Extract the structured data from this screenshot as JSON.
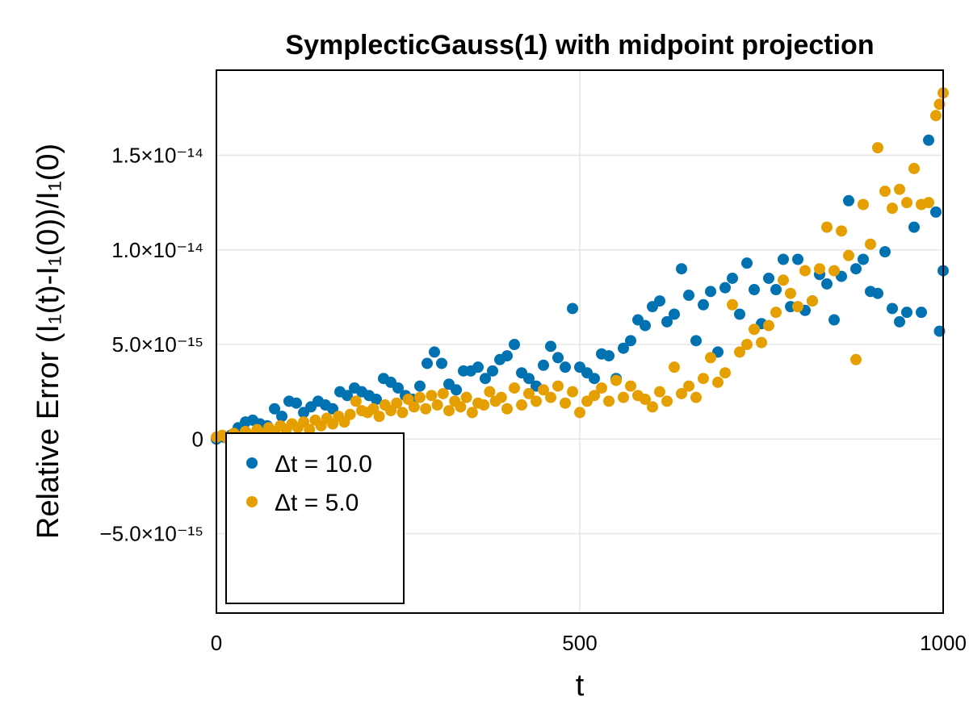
{
  "chart_data": {
    "type": "scatter",
    "title": "SymplecticGauss(1) with midpoint projection",
    "xlabel": "t",
    "ylabel": "Relative Error (I₁(t)-I₁(0))/I₁(0)",
    "xlim": [
      0,
      1000
    ],
    "ylim": [
      -9.2e-15,
      1.95e-14
    ],
    "x_ticks": [
      {
        "value": 0,
        "label": "0"
      },
      {
        "value": 500,
        "label": "500"
      },
      {
        "value": 1000,
        "label": "1000"
      }
    ],
    "y_ticks": [
      {
        "value": -5e-15,
        "label": "−5.0×10⁻¹⁵"
      },
      {
        "value": 0,
        "label": "0"
      },
      {
        "value": 5e-15,
        "label": "5.0×10⁻¹⁵"
      },
      {
        "value": 1e-14,
        "label": "1.0×10⁻¹⁴"
      },
      {
        "value": 1.5e-14,
        "label": "1.5×10⁻¹⁴"
      }
    ],
    "grid": true,
    "legend_position": "bottom-left",
    "series": [
      {
        "name": "Δt = 10.0",
        "color": "#0072b2",
        "points": [
          [
            0,
            0.0
          ],
          [
            10,
            1e-16
          ],
          [
            20,
            2e-16
          ],
          [
            30,
            6e-16
          ],
          [
            40,
            9e-16
          ],
          [
            50,
            1e-15
          ],
          [
            60,
            8e-16
          ],
          [
            70,
            7e-16
          ],
          [
            80,
            1.6e-15
          ],
          [
            90,
            1.2e-15
          ],
          [
            100,
            2e-15
          ],
          [
            110,
            1.9e-15
          ],
          [
            120,
            1.4e-15
          ],
          [
            130,
            1.7e-15
          ],
          [
            140,
            2e-15
          ],
          [
            150,
            1.8e-15
          ],
          [
            160,
            1.6e-15
          ],
          [
            170,
            2.5e-15
          ],
          [
            180,
            2.3e-15
          ],
          [
            190,
            2.7e-15
          ],
          [
            200,
            2.5e-15
          ],
          [
            210,
            2.3e-15
          ],
          [
            220,
            2.1e-15
          ],
          [
            230,
            3.2e-15
          ],
          [
            240,
            3e-15
          ],
          [
            250,
            2.7e-15
          ],
          [
            260,
            2.3e-15
          ],
          [
            270,
            2.1e-15
          ],
          [
            280,
            2.8e-15
          ],
          [
            290,
            4e-15
          ],
          [
            300,
            4.6e-15
          ],
          [
            310,
            4e-15
          ],
          [
            320,
            2.9e-15
          ],
          [
            330,
            2.6e-15
          ],
          [
            340,
            3.6e-15
          ],
          [
            350,
            3.6e-15
          ],
          [
            360,
            3.8e-15
          ],
          [
            370,
            3.2e-15
          ],
          [
            380,
            3.6e-15
          ],
          [
            390,
            4.2e-15
          ],
          [
            400,
            4.4e-15
          ],
          [
            410,
            5e-15
          ],
          [
            420,
            3.5e-15
          ],
          [
            430,
            3.2e-15
          ],
          [
            440,
            2.8e-15
          ],
          [
            450,
            3.9e-15
          ],
          [
            460,
            4.9e-15
          ],
          [
            470,
            4.3e-15
          ],
          [
            480,
            3.8e-15
          ],
          [
            490,
            6.9e-15
          ],
          [
            500,
            3.8e-15
          ],
          [
            510,
            3.5e-15
          ],
          [
            520,
            3.2e-15
          ],
          [
            530,
            4.5e-15
          ],
          [
            540,
            4.4e-15
          ],
          [
            550,
            3.2e-15
          ],
          [
            560,
            4.8e-15
          ],
          [
            570,
            5.2e-15
          ],
          [
            580,
            6.3e-15
          ],
          [
            590,
            6e-15
          ],
          [
            600,
            7e-15
          ],
          [
            610,
            7.3e-15
          ],
          [
            620,
            6.2e-15
          ],
          [
            630,
            6.6e-15
          ],
          [
            640,
            9e-15
          ],
          [
            650,
            7.6e-15
          ],
          [
            660,
            5.2e-15
          ],
          [
            670,
            7.1e-15
          ],
          [
            680,
            7.8e-15
          ],
          [
            690,
            4.6e-15
          ],
          [
            700,
            8e-15
          ],
          [
            710,
            8.5e-15
          ],
          [
            720,
            6.6e-15
          ],
          [
            730,
            9.3e-15
          ],
          [
            740,
            7.9e-15
          ],
          [
            750,
            6.1e-15
          ],
          [
            760,
            8.5e-15
          ],
          [
            770,
            7.9e-15
          ],
          [
            780,
            9.5e-15
          ],
          [
            790,
            7e-15
          ],
          [
            800,
            9.5e-15
          ],
          [
            810,
            6.8e-15
          ],
          [
            820,
            7.3e-15
          ],
          [
            830,
            8.7e-15
          ],
          [
            840,
            8.2e-15
          ],
          [
            850,
            6.3e-15
          ],
          [
            860,
            8.6e-15
          ],
          [
            870,
            1.26e-14
          ],
          [
            880,
            9e-15
          ],
          [
            890,
            9.5e-15
          ],
          [
            900,
            7.8e-15
          ],
          [
            910,
            7.7e-15
          ],
          [
            920,
            9.9e-15
          ],
          [
            930,
            6.9e-15
          ],
          [
            940,
            6.2e-15
          ],
          [
            950,
            6.7e-15
          ],
          [
            960,
            1.12e-14
          ],
          [
            970,
            6.7e-15
          ],
          [
            980,
            1.58e-14
          ],
          [
            990,
            1.2e-14
          ],
          [
            995,
            5.7e-15
          ],
          [
            1000,
            8.9e-15
          ]
        ]
      },
      {
        "name": "Δt = 5.0",
        "color": "#e69f00",
        "points": [
          [
            0,
            1e-16
          ],
          [
            8,
            2e-16
          ],
          [
            16,
            0.0
          ],
          [
            24,
            3e-16
          ],
          [
            32,
            1e-16
          ],
          [
            40,
            4e-16
          ],
          [
            48,
            2e-16
          ],
          [
            56,
            5e-16
          ],
          [
            64,
            3e-16
          ],
          [
            72,
            6e-16
          ],
          [
            80,
            4e-16
          ],
          [
            88,
            7e-16
          ],
          [
            96,
            5e-16
          ],
          [
            104,
            8e-16
          ],
          [
            112,
            6e-16
          ],
          [
            120,
            9e-16
          ],
          [
            128,
            5e-16
          ],
          [
            136,
            1e-15
          ],
          [
            144,
            7e-16
          ],
          [
            152,
            1.1e-15
          ],
          [
            160,
            8e-16
          ],
          [
            168,
            1.2e-15
          ],
          [
            176,
            9e-16
          ],
          [
            184,
            1.3e-15
          ],
          [
            192,
            2e-15
          ],
          [
            200,
            1.5e-15
          ],
          [
            208,
            1.4e-15
          ],
          [
            216,
            1.6e-15
          ],
          [
            224,
            1.2e-15
          ],
          [
            232,
            1.8e-15
          ],
          [
            240,
            1.5e-15
          ],
          [
            248,
            1.9e-15
          ],
          [
            256,
            1.4e-15
          ],
          [
            264,
            2.1e-15
          ],
          [
            272,
            1.7e-15
          ],
          [
            280,
            2.2e-15
          ],
          [
            288,
            1.6e-15
          ],
          [
            296,
            2.3e-15
          ],
          [
            304,
            1.8e-15
          ],
          [
            312,
            2.4e-15
          ],
          [
            320,
            1.5e-15
          ],
          [
            328,
            2e-15
          ],
          [
            336,
            1.7e-15
          ],
          [
            344,
            2.2e-15
          ],
          [
            352,
            1.4e-15
          ],
          [
            360,
            1.9e-15
          ],
          [
            368,
            1.8e-15
          ],
          [
            376,
            2.5e-15
          ],
          [
            384,
            2e-15
          ],
          [
            392,
            2.2e-15
          ],
          [
            400,
            1.6e-15
          ],
          [
            410,
            2.7e-15
          ],
          [
            420,
            1.8e-15
          ],
          [
            430,
            2.4e-15
          ],
          [
            440,
            2e-15
          ],
          [
            450,
            2.6e-15
          ],
          [
            460,
            2.2e-15
          ],
          [
            470,
            2.8e-15
          ],
          [
            480,
            1.9e-15
          ],
          [
            490,
            2.5e-15
          ],
          [
            500,
            1.4e-15
          ],
          [
            510,
            2e-15
          ],
          [
            520,
            2.3e-15
          ],
          [
            530,
            2.7e-15
          ],
          [
            540,
            2e-15
          ],
          [
            550,
            3.1e-15
          ],
          [
            560,
            2.2e-15
          ],
          [
            570,
            2.8e-15
          ],
          [
            580,
            2.3e-15
          ],
          [
            590,
            2.1e-15
          ],
          [
            600,
            1.7e-15
          ],
          [
            610,
            2.5e-15
          ],
          [
            620,
            2e-15
          ],
          [
            630,
            3.8e-15
          ],
          [
            640,
            2.4e-15
          ],
          [
            650,
            2.8e-15
          ],
          [
            660,
            2.2e-15
          ],
          [
            670,
            3.2e-15
          ],
          [
            680,
            4.3e-15
          ],
          [
            690,
            3e-15
          ],
          [
            700,
            3.5e-15
          ],
          [
            710,
            7.1e-15
          ],
          [
            720,
            4.6e-15
          ],
          [
            730,
            5e-15
          ],
          [
            740,
            5.8e-15
          ],
          [
            750,
            5.1e-15
          ],
          [
            760,
            6e-15
          ],
          [
            770,
            6.7e-15
          ],
          [
            780,
            8.4e-15
          ],
          [
            790,
            7.7e-15
          ],
          [
            800,
            7e-15
          ],
          [
            810,
            8.9e-15
          ],
          [
            820,
            7.3e-15
          ],
          [
            830,
            9e-15
          ],
          [
            840,
            1.12e-14
          ],
          [
            850,
            8.9e-15
          ],
          [
            860,
            1.1e-14
          ],
          [
            870,
            9.7e-15
          ],
          [
            880,
            4.2e-15
          ],
          [
            890,
            1.24e-14
          ],
          [
            900,
            1.03e-14
          ],
          [
            910,
            1.54e-14
          ],
          [
            920,
            1.31e-14
          ],
          [
            930,
            1.22e-14
          ],
          [
            940,
            1.32e-14
          ],
          [
            950,
            1.25e-14
          ],
          [
            960,
            1.43e-14
          ],
          [
            970,
            1.24e-14
          ],
          [
            980,
            1.25e-14
          ],
          [
            990,
            1.71e-14
          ],
          [
            995,
            1.77e-14
          ],
          [
            1000,
            1.83e-14
          ]
        ]
      }
    ]
  }
}
